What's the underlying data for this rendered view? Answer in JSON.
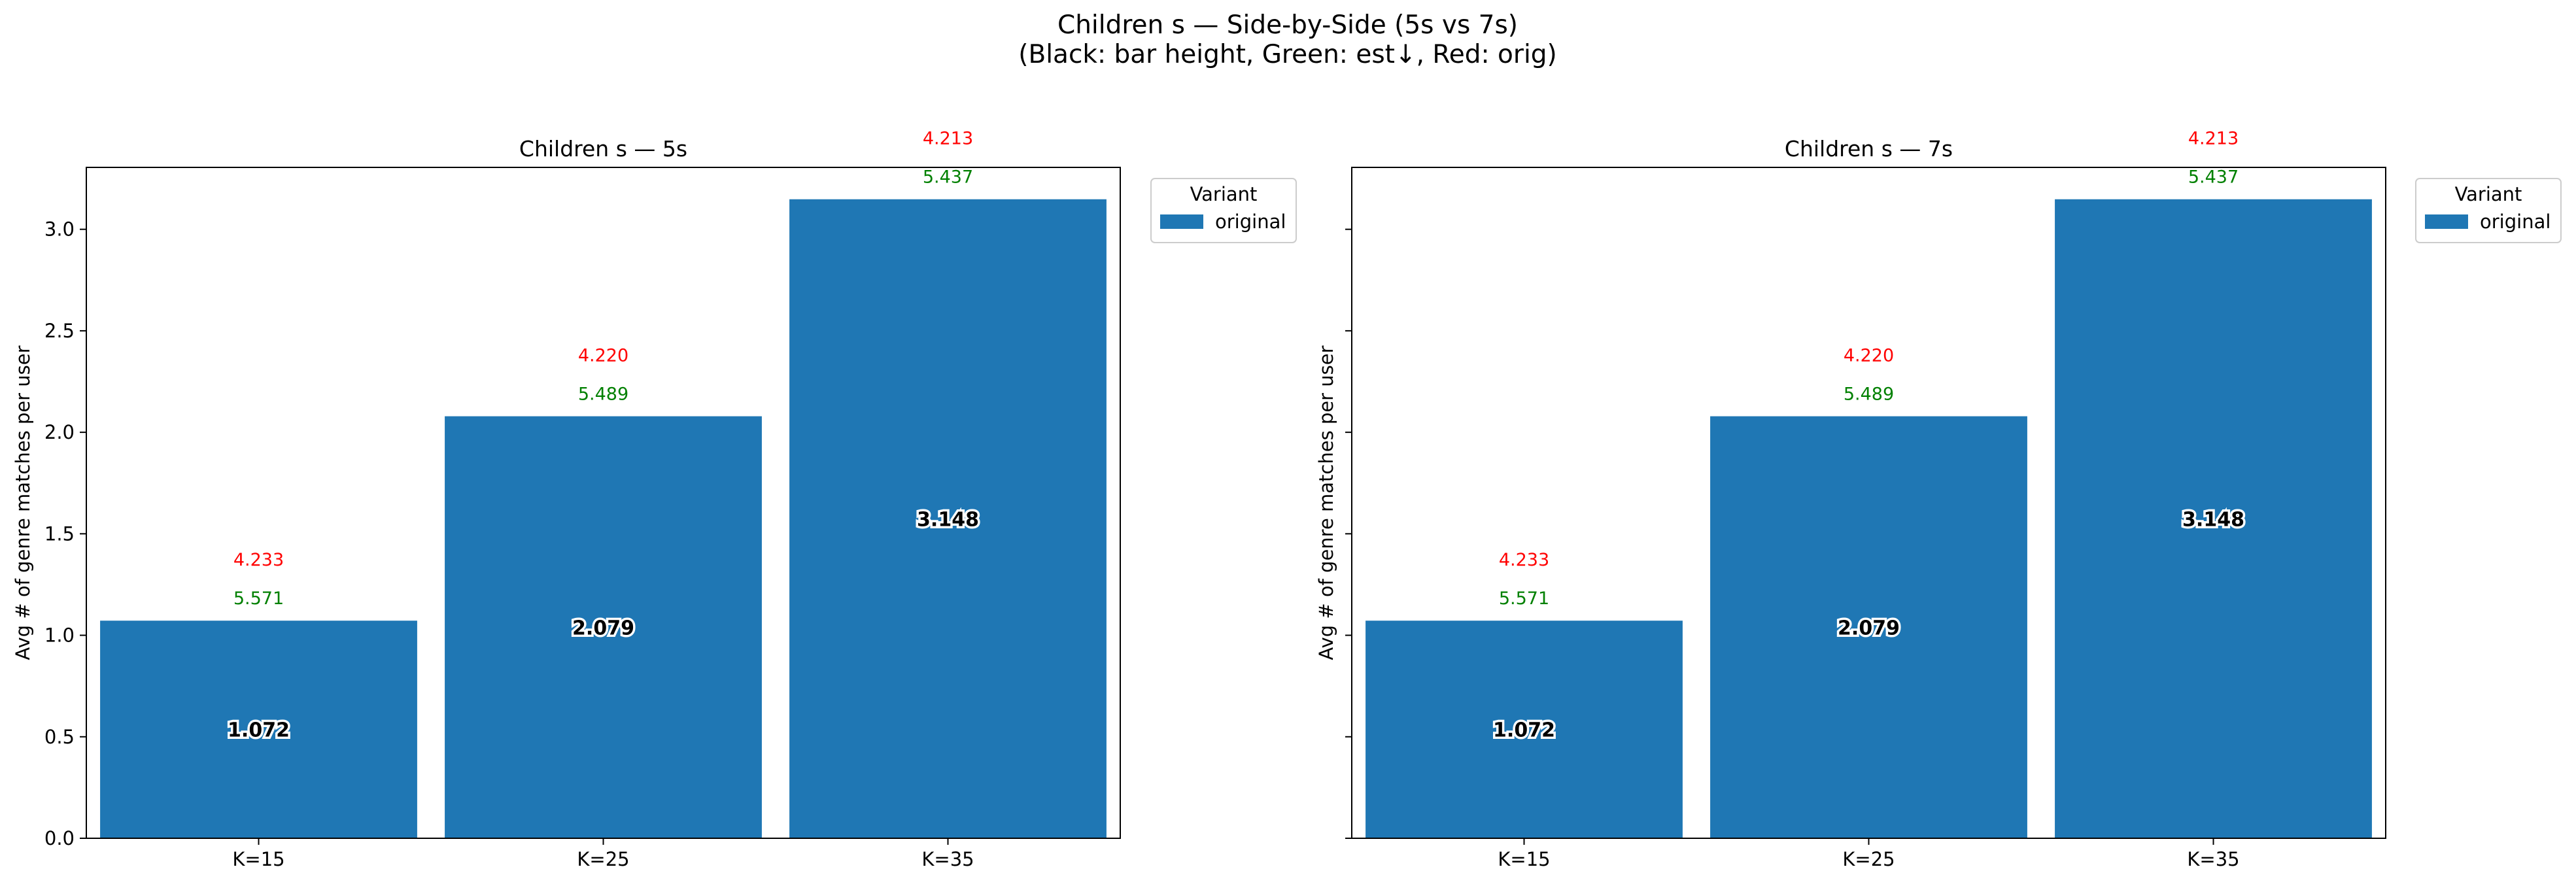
{
  "figure": {
    "title_line1": "Children s — Side-by-Side (5s vs 7s)",
    "title_line2": "(Black: bar height, Green: est↓, Red: orig)"
  },
  "chart_data": [
    {
      "type": "bar",
      "title": "Children s — 5s",
      "xlabel": "",
      "ylabel": "Avg # of genre matches per user",
      "categories": [
        "K=15",
        "K=25",
        "K=35"
      ],
      "series": [
        {
          "name": "original",
          "color": "#1f77b4",
          "values": [
            1.072,
            2.079,
            3.148
          ]
        }
      ],
      "bar_labels": [
        "1.072",
        "2.079",
        "3.148"
      ],
      "est_labels": [
        "5.571",
        "5.489",
        "5.437"
      ],
      "orig_labels": [
        "4.233",
        "4.220",
        "4.213"
      ],
      "ylim": [
        0,
        3.305
      ],
      "yticks": [
        0.0,
        0.5,
        1.0,
        1.5,
        2.0,
        2.5,
        3.0
      ],
      "ytick_labels": [
        "0.0",
        "0.5",
        "1.0",
        "1.5",
        "2.0",
        "2.5",
        "3.0"
      ],
      "grid": false,
      "legend": {
        "title": "Variant",
        "entries": [
          "original"
        ],
        "placement": "outside upper right"
      }
    },
    {
      "type": "bar",
      "title": "Children s — 7s",
      "xlabel": "",
      "ylabel": "Avg # of genre matches per user",
      "categories": [
        "K=15",
        "K=25",
        "K=35"
      ],
      "series": [
        {
          "name": "original",
          "color": "#1f77b4",
          "values": [
            1.072,
            2.079,
            3.148
          ]
        }
      ],
      "bar_labels": [
        "1.072",
        "2.079",
        "3.148"
      ],
      "est_labels": [
        "5.571",
        "5.489",
        "5.437"
      ],
      "orig_labels": [
        "4.233",
        "4.220",
        "4.213"
      ],
      "ylim": [
        0,
        3.305
      ],
      "yticks": [
        0.0,
        0.5,
        1.0,
        1.5,
        2.0,
        2.5,
        3.0
      ],
      "ytick_labels": [],
      "grid": false,
      "legend": {
        "title": "Variant",
        "entries": [
          "original"
        ],
        "placement": "outside upper right"
      }
    }
  ]
}
